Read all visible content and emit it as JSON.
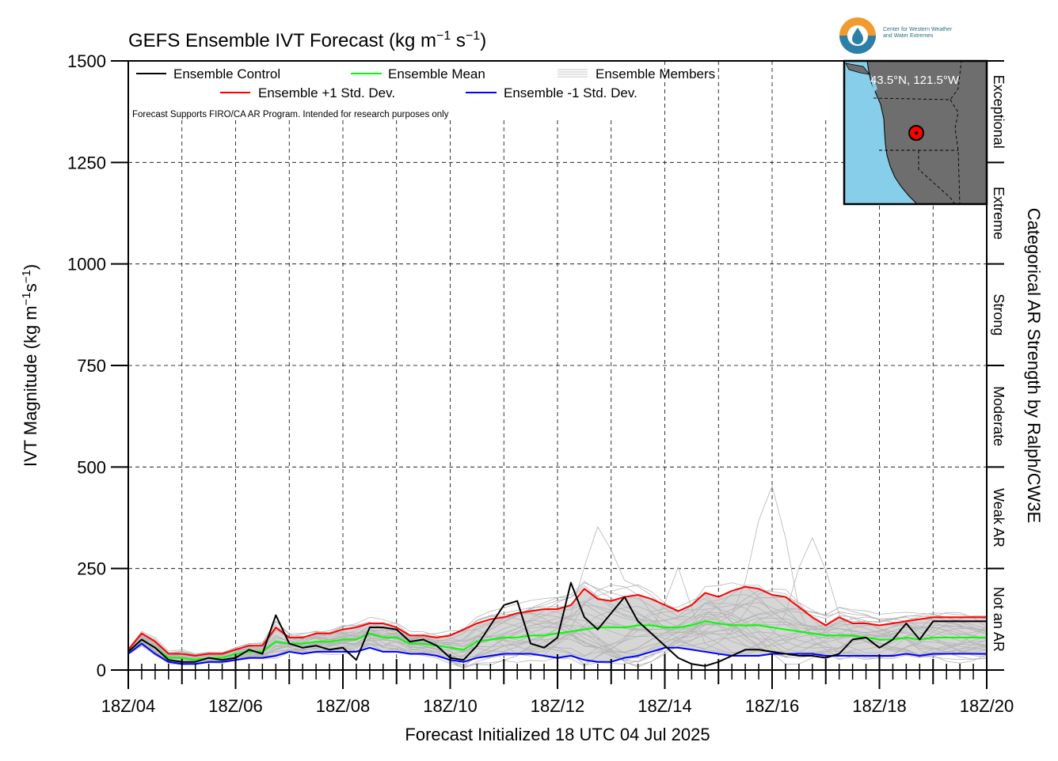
{
  "chart_data": {
    "type": "line",
    "title_prefix": "GEFS Ensemble IVT Forecast (kg m",
    "title_sup1": "−1",
    "title_mid": " s",
    "title_sup2": "−1",
    "title_suffix": ")",
    "ylabel_prefix": "IVT Magnitude (kg m",
    "ylabel_sup1": "−1",
    "ylabel_mid": "s",
    "ylabel_sup2": "−1",
    "ylabel_suffix": ")",
    "xlabel": "Forecast Initialized 18 UTC 04 Jul 2025",
    "right_axis_label": "Categorical AR Strength by Ralph/CW3E",
    "note": "Forecast Supports FIRO/CA AR Program. Intended for research purposes only",
    "x_unit": "forecast day (Jul 2025)",
    "xlim": [
      4.75,
      20.75
    ],
    "ylim": [
      0,
      1500
    ],
    "y_ticks": [
      0,
      250,
      500,
      750,
      1000,
      1250,
      1500
    ],
    "x_tick_labels": [
      {
        "x": 4.75,
        "label": "18Z/04"
      },
      {
        "x": 6.75,
        "label": "18Z/06"
      },
      {
        "x": 8.75,
        "label": "18Z/08"
      },
      {
        "x": 10.75,
        "label": "18Z/10"
      },
      {
        "x": 12.75,
        "label": "18Z/12"
      },
      {
        "x": 14.75,
        "label": "18Z/14"
      },
      {
        "x": 16.75,
        "label": "18Z/16"
      },
      {
        "x": 18.75,
        "label": "18Z/18"
      },
      {
        "x": 20.75,
        "label": "18Z/20"
      }
    ],
    "grid": true,
    "legend_position": "top-left",
    "categories": [
      {
        "label": "Not an AR",
        "from": 0,
        "to": 250
      },
      {
        "label": "Weak AR",
        "from": 250,
        "to": 500
      },
      {
        "label": "Moderate",
        "from": 500,
        "to": 750
      },
      {
        "label": "Strong",
        "from": 750,
        "to": 1000
      },
      {
        "label": "Extreme",
        "from": 1000,
        "to": 1250
      },
      {
        "label": "Exceptional",
        "from": 1250,
        "to": 1500
      }
    ],
    "series": [
      {
        "name": "Ensemble Control",
        "color": "#000000",
        "x": [
          4.75,
          5.0,
          5.25,
          5.5,
          5.75,
          6.0,
          6.25,
          6.5,
          6.75,
          7.0,
          7.25,
          7.5,
          7.75,
          8.0,
          8.25,
          8.5,
          8.75,
          9.0,
          9.25,
          9.5,
          9.75,
          10.0,
          10.25,
          10.5,
          10.75,
          11.0,
          11.25,
          11.5,
          11.75,
          12.0,
          12.25,
          12.5,
          12.75,
          13.0,
          13.25,
          13.5,
          13.75,
          14.0,
          14.25,
          14.5,
          14.75,
          15.0,
          15.25,
          15.5,
          15.75,
          16.0,
          16.25,
          16.5,
          16.75,
          17.0,
          17.25,
          17.5,
          17.75,
          18.0,
          18.25,
          18.5,
          18.75,
          19.0,
          19.25,
          19.5,
          19.75,
          20.0,
          20.25,
          20.5,
          20.75
        ],
        "y": [
          45,
          75,
          55,
          25,
          20,
          20,
          30,
          25,
          30,
          50,
          40,
          135,
          65,
          55,
          60,
          50,
          55,
          25,
          105,
          105,
          100,
          70,
          75,
          60,
          30,
          25,
          60,
          110,
          160,
          170,
          65,
          55,
          80,
          215,
          130,
          100,
          140,
          180,
          120,
          90,
          60,
          30,
          15,
          10,
          20,
          35,
          50,
          50,
          45,
          40,
          35,
          35,
          30,
          40,
          75,
          80,
          55,
          75,
          115,
          75,
          120,
          120,
          120,
          120,
          120
        ]
      },
      {
        "name": "Ensemble Mean",
        "color": "#00ff00",
        "x": [
          4.75,
          5.0,
          5.25,
          5.5,
          5.75,
          6.0,
          6.25,
          6.5,
          6.75,
          7.0,
          7.25,
          7.5,
          7.75,
          8.0,
          8.25,
          8.5,
          8.75,
          9.0,
          9.25,
          9.5,
          9.75,
          10.0,
          10.25,
          10.5,
          10.75,
          11.0,
          11.25,
          11.5,
          11.75,
          12.0,
          12.25,
          12.5,
          12.75,
          13.0,
          13.25,
          13.5,
          13.75,
          14.0,
          14.25,
          14.5,
          14.75,
          15.0,
          15.25,
          15.5,
          15.75,
          16.0,
          16.25,
          16.5,
          16.75,
          17.0,
          17.25,
          17.5,
          17.75,
          18.0,
          18.25,
          18.5,
          18.75,
          19.0,
          19.25,
          19.5,
          19.75,
          20.0,
          20.25,
          20.5,
          20.75
        ],
        "y": [
          45,
          75,
          55,
          30,
          30,
          25,
          30,
          30,
          40,
          45,
          45,
          70,
          65,
          65,
          70,
          70,
          75,
          75,
          90,
          80,
          80,
          65,
          65,
          60,
          55,
          50,
          70,
          75,
          80,
          80,
          85,
          85,
          90,
          95,
          100,
          105,
          105,
          105,
          110,
          110,
          105,
          105,
          110,
          120,
          115,
          110,
          110,
          110,
          105,
          100,
          95,
          90,
          85,
          85,
          85,
          80,
          75,
          75,
          80,
          75,
          80,
          80,
          80,
          80,
          80
        ]
      },
      {
        "name": "Ensemble +1 Std. Dev.",
        "color": "#ff0000",
        "x": [
          4.75,
          5.0,
          5.25,
          5.5,
          5.75,
          6.0,
          6.25,
          6.5,
          6.75,
          7.0,
          7.25,
          7.5,
          7.75,
          8.0,
          8.25,
          8.5,
          8.75,
          9.0,
          9.25,
          9.5,
          9.75,
          10.0,
          10.25,
          10.5,
          10.75,
          11.0,
          11.25,
          11.5,
          11.75,
          12.0,
          12.25,
          12.5,
          12.75,
          13.0,
          13.25,
          13.5,
          13.75,
          14.0,
          14.25,
          14.5,
          14.75,
          15.0,
          15.25,
          15.5,
          15.75,
          16.0,
          16.25,
          16.5,
          16.75,
          17.0,
          17.25,
          17.5,
          17.75,
          18.0,
          18.25,
          18.5,
          18.75,
          19.0,
          19.25,
          19.5,
          19.75,
          20.0,
          20.25,
          20.5,
          20.75
        ],
        "y": [
          50,
          90,
          70,
          40,
          40,
          35,
          40,
          40,
          50,
          60,
          60,
          105,
          80,
          80,
          90,
          90,
          100,
          105,
          115,
          115,
          105,
          85,
          85,
          80,
          85,
          100,
          115,
          125,
          130,
          140,
          145,
          150,
          150,
          160,
          200,
          175,
          170,
          180,
          185,
          175,
          160,
          145,
          160,
          190,
          180,
          195,
          205,
          200,
          185,
          180,
          155,
          130,
          110,
          130,
          115,
          115,
          110,
          115,
          120,
          125,
          130,
          130,
          130,
          130,
          130
        ]
      },
      {
        "name": "Ensemble -1 Std. Dev.",
        "color": "#0000ff",
        "x": [
          4.75,
          5.0,
          5.25,
          5.5,
          5.75,
          6.0,
          6.25,
          6.5,
          6.75,
          7.0,
          7.25,
          7.5,
          7.75,
          8.0,
          8.25,
          8.5,
          8.75,
          9.0,
          9.25,
          9.5,
          9.75,
          10.0,
          10.25,
          10.5,
          10.75,
          11.0,
          11.25,
          11.5,
          11.75,
          12.0,
          12.25,
          12.5,
          12.75,
          13.0,
          13.25,
          13.5,
          13.75,
          14.0,
          14.25,
          14.5,
          14.75,
          15.0,
          15.25,
          15.5,
          15.75,
          16.0,
          16.25,
          16.5,
          16.75,
          17.0,
          17.25,
          17.5,
          17.75,
          18.0,
          18.25,
          18.5,
          18.75,
          19.0,
          19.25,
          19.5,
          19.75,
          20.0,
          20.25,
          20.5,
          20.75
        ],
        "y": [
          40,
          65,
          40,
          20,
          15,
          15,
          20,
          20,
          25,
          30,
          30,
          35,
          45,
          40,
          45,
          45,
          45,
          45,
          55,
          45,
          45,
          40,
          40,
          35,
          25,
          20,
          30,
          35,
          40,
          40,
          40,
          35,
          30,
          35,
          25,
          20,
          20,
          30,
          35,
          45,
          55,
          55,
          50,
          45,
          40,
          35,
          35,
          35,
          40,
          40,
          40,
          40,
          35,
          35,
          35,
          35,
          35,
          35,
          40,
          35,
          40,
          40,
          40,
          40,
          40
        ]
      }
    ],
    "ensemble_members_label": "Ensemble Members",
    "ensemble_members_color": "#b4b4b4"
  },
  "inset": {
    "location_label": "43.5°N, 121.5°W",
    "land_color": "#6e6e6e",
    "ocean_color": "#87ceeb"
  },
  "logo": {
    "line1": "Center for Western Weather",
    "line2": "and Water Extremes"
  }
}
